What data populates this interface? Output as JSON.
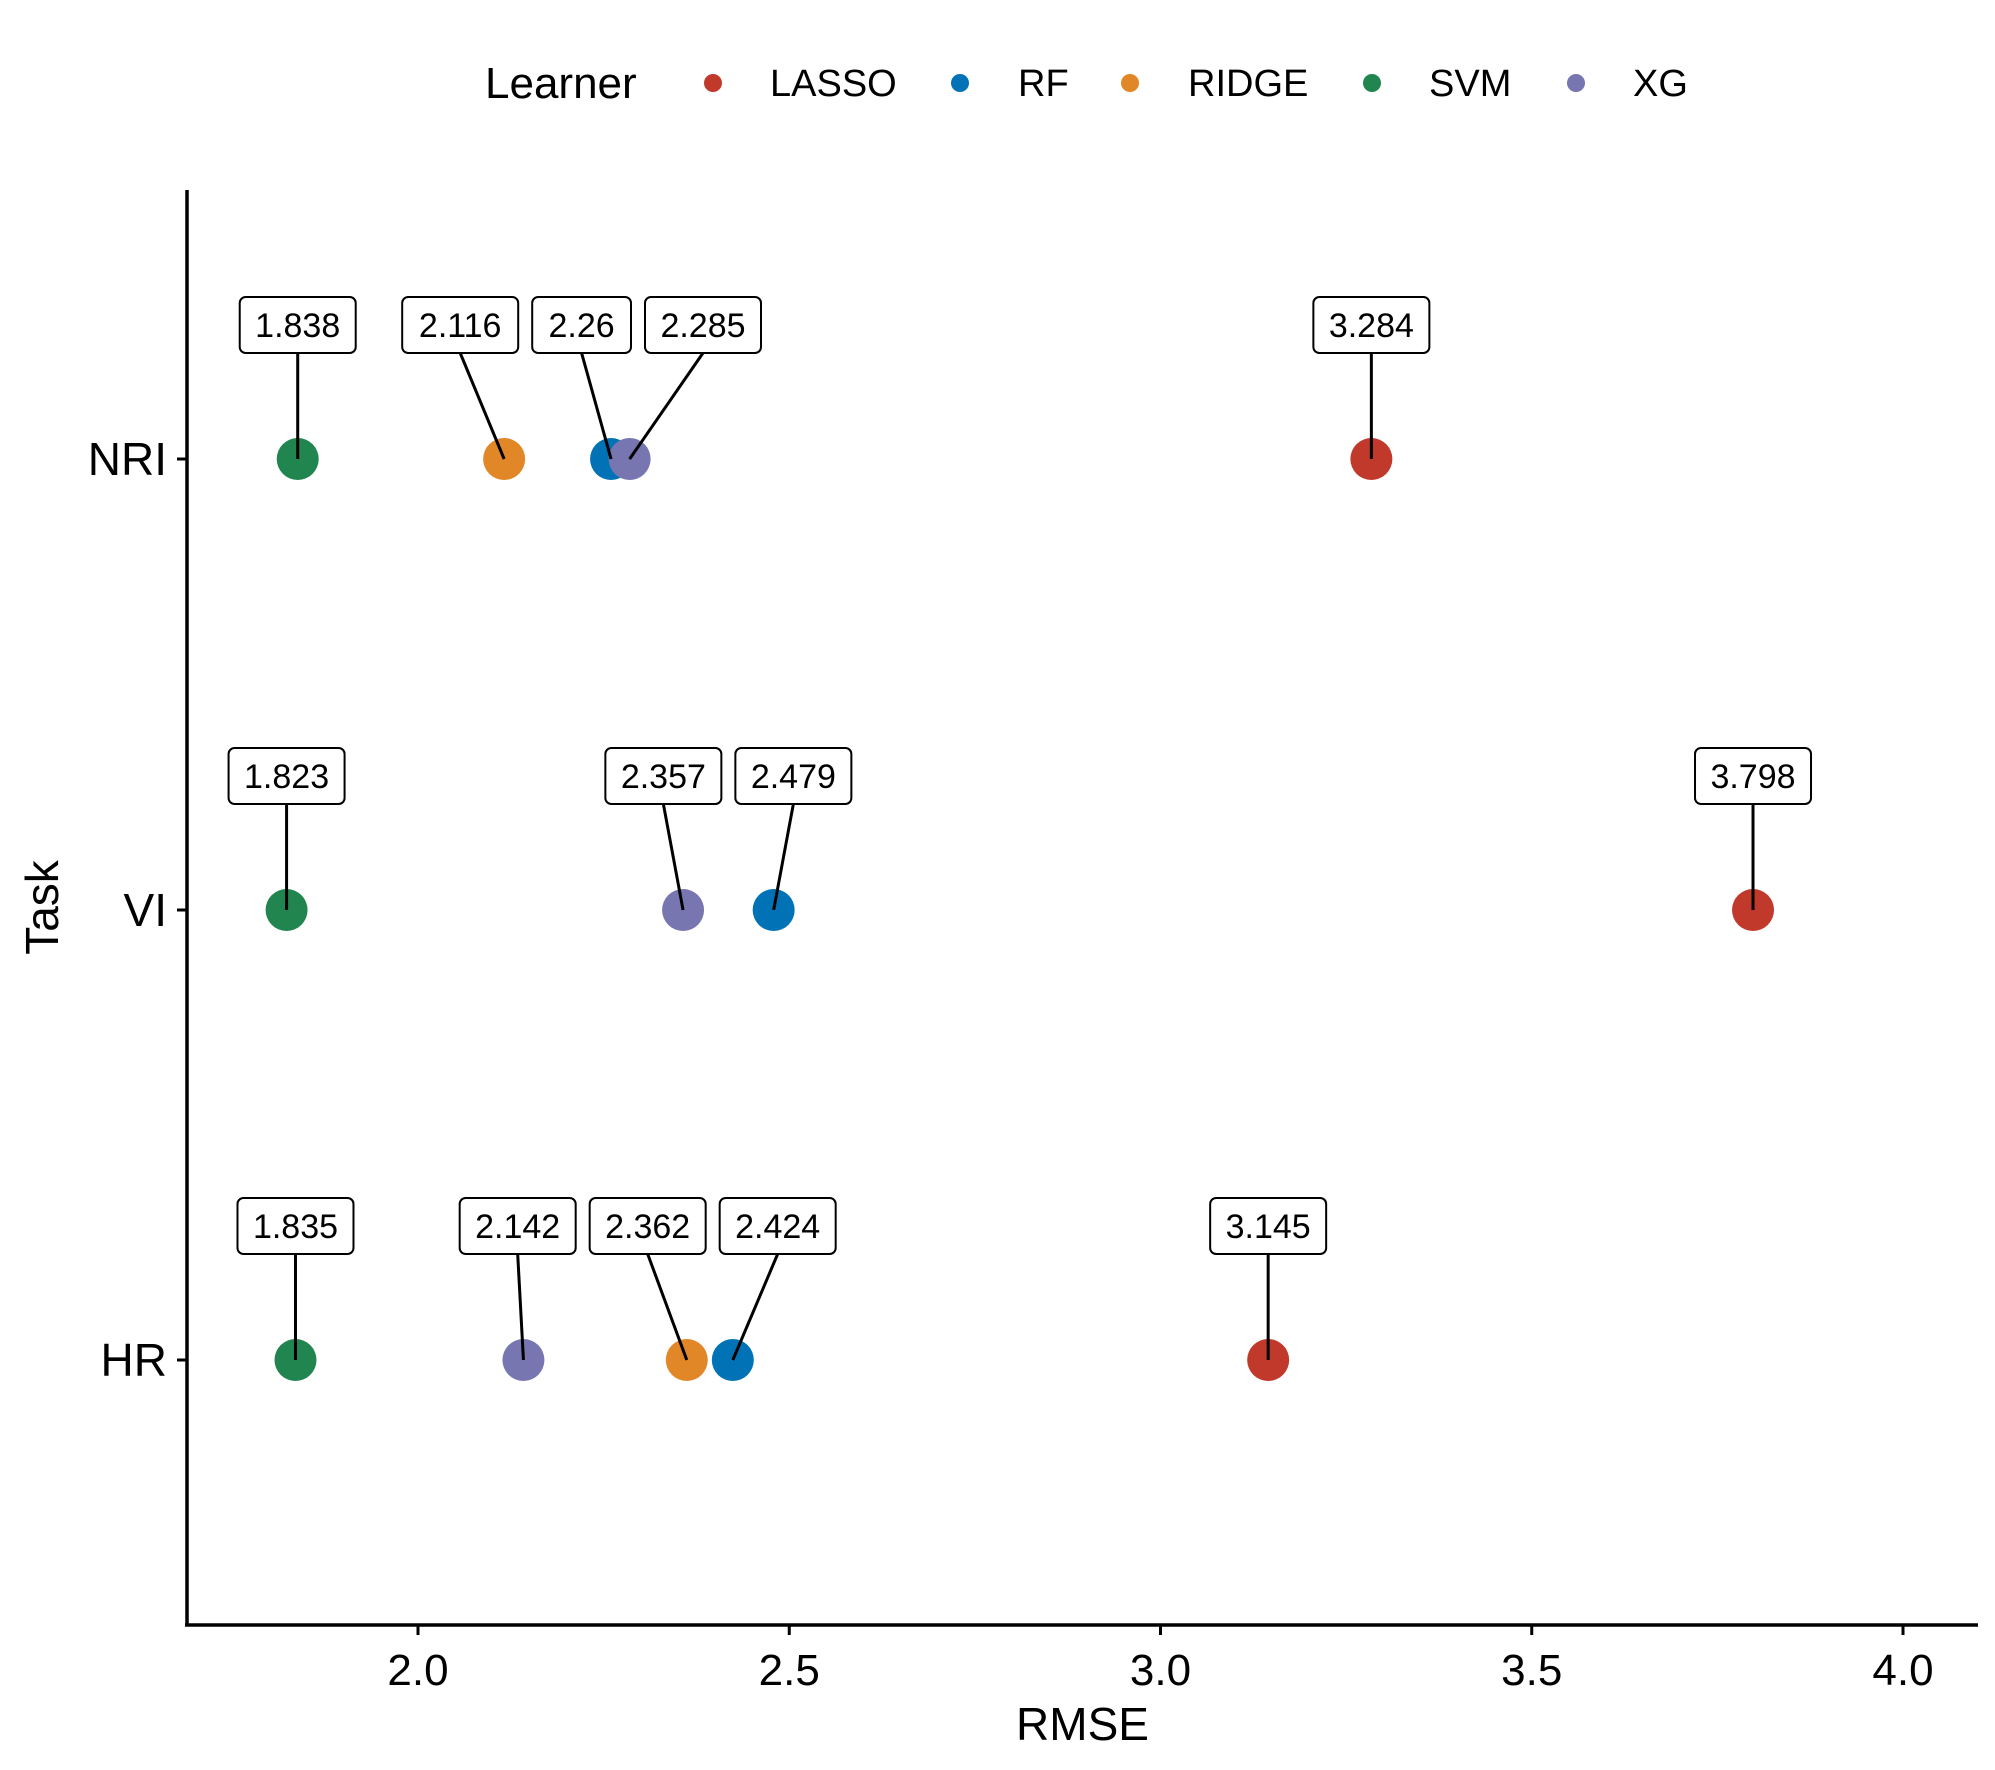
{
  "colors": {
    "LASSO": "#C0392B",
    "RF": "#0072B5",
    "RIDGE": "#E18727",
    "SVM": "#20854E",
    "XG": "#7876B1"
  },
  "chart_data": {
    "type": "scatter",
    "title": "",
    "xlabel": "RMSE",
    "ylabel": "Task",
    "xlim": [
      1.7,
      4.1
    ],
    "xticks": [
      2.0,
      2.5,
      3.0,
      3.5,
      4.0
    ],
    "xtick_labels": [
      "2.0",
      "2.5",
      "3.0",
      "3.5",
      "4.0"
    ],
    "categories": [
      "HR",
      "VI",
      "NRI"
    ],
    "legend": {
      "title": "Learner",
      "position": "top",
      "entries": [
        "LASSO",
        "RF",
        "RIDGE",
        "SVM",
        "XG"
      ]
    },
    "grid": false,
    "series": [
      {
        "name": "LASSO",
        "points": [
          {
            "task": "NRI",
            "value": 3.284,
            "label": "3.284"
          },
          {
            "task": "VI",
            "value": 3.798,
            "label": "3.798"
          },
          {
            "task": "HR",
            "value": 3.145,
            "label": "3.145"
          }
        ]
      },
      {
        "name": "RF",
        "points": [
          {
            "task": "NRI",
            "value": 2.26,
            "label": "2.26"
          },
          {
            "task": "VI",
            "value": 2.479,
            "label": "2.479"
          },
          {
            "task": "HR",
            "value": 2.424,
            "label": "2.424"
          }
        ]
      },
      {
        "name": "RIDGE",
        "points": [
          {
            "task": "NRI",
            "value": 2.116,
            "label": "2.116"
          },
          {
            "task": "HR",
            "value": 2.362,
            "label": "2.362"
          }
        ]
      },
      {
        "name": "SVM",
        "points": [
          {
            "task": "NRI",
            "value": 1.838,
            "label": "1.838"
          },
          {
            "task": "VI",
            "value": 1.823,
            "label": "1.823"
          },
          {
            "task": "HR",
            "value": 1.835,
            "label": "1.835"
          }
        ]
      },
      {
        "name": "XG",
        "points": [
          {
            "task": "NRI",
            "value": 2.285,
            "label": "2.285"
          },
          {
            "task": "VI",
            "value": 2.357,
            "label": "2.357"
          },
          {
            "task": "HR",
            "value": 2.142,
            "label": "2.142"
          }
        ]
      }
    ]
  }
}
